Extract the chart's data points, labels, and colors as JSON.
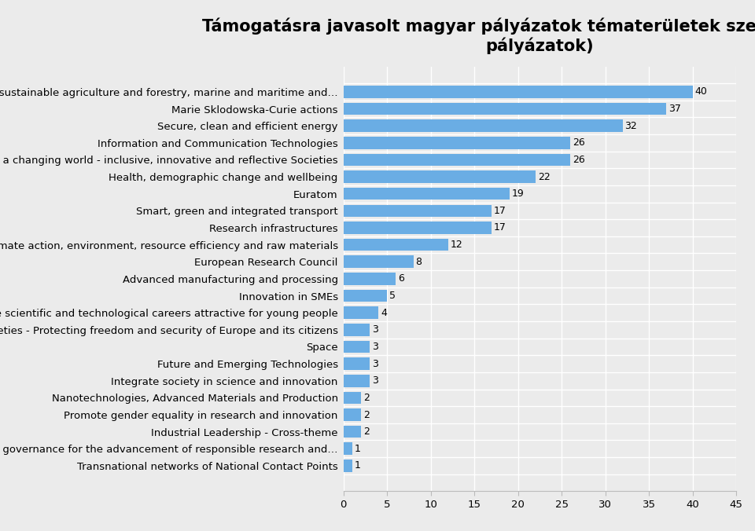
{
  "title": "Támogatásra javasolt magyar pályázatok tématerületek szerint (mainlist\npályázatok)",
  "categories": [
    "Food security, sustainable agriculture and forestry, marine and maritime and…",
    "Marie Sklodowska-Curie actions",
    "Secure, clean and efficient energy",
    "Information and Communication Technologies",
    "Europe in a changing world - inclusive, innovative and reflective Societies",
    "Health, demographic change and wellbeing",
    "Euratom",
    "Smart, green and integrated transport",
    "Research infrastructures",
    "Climate action, environment, resource efficiency and raw materials",
    "European Research Council",
    "Advanced manufacturing and processing",
    "Innovation in SMEs",
    "Make scientific and technological careers attractive for young people",
    "Secure societies - Protecting freedom and security of Europe and its citizens",
    "Space",
    "Future and Emerging Technologies",
    "Integrate society in science and innovation",
    "Nanotechnologies, Advanced Materials and Production",
    "Promote gender equality in research and innovation",
    "Industrial Leadership - Cross-theme",
    "Develop the governance for the advancement of responsible research and…",
    "Transnational networks of National Contact Points"
  ],
  "values": [
    40,
    37,
    32,
    26,
    26,
    22,
    19,
    17,
    17,
    12,
    8,
    6,
    5,
    4,
    3,
    3,
    3,
    3,
    2,
    2,
    2,
    1,
    1
  ],
  "bar_color": "#6aade4",
  "background_color": "#ebebeb",
  "plot_bg_color": "#ebebeb",
  "title_fontsize": 15,
  "label_fontsize": 9.5,
  "value_fontsize": 9,
  "xlim": [
    0,
    45
  ],
  "xticks": [
    0,
    5,
    10,
    15,
    20,
    25,
    30,
    35,
    40,
    45
  ],
  "grid_color": "#ffffff",
  "bar_height": 0.72
}
